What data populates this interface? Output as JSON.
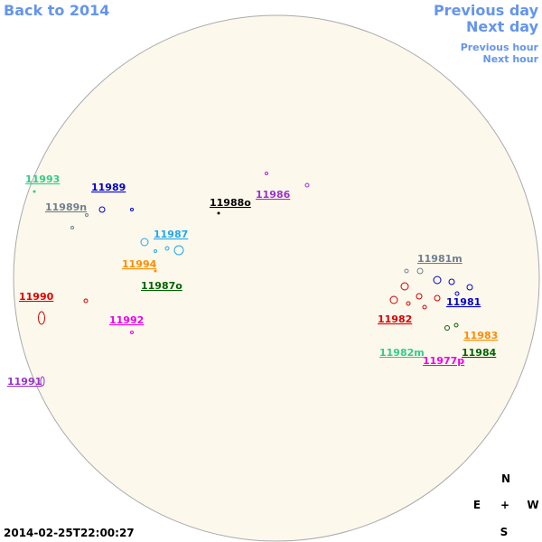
{
  "nav": {
    "back": "Back to 2014",
    "previous_day": "Previous day",
    "next_day": "Next day",
    "previous_hour": "Previous hour",
    "next_hour": "Next hour"
  },
  "regions": [
    "11993",
    "11989",
    "11989n",
    "11988o",
    "11986",
    "11987",
    "11994",
    "11987o",
    "11990",
    "11992",
    "11991",
    "11981m",
    "11981",
    "11982",
    "11983",
    "11982m",
    "11984",
    "11977p"
  ],
  "compass": {
    "north": "N",
    "east": "E",
    "center": "+",
    "west": "W",
    "south": "S"
  },
  "timestamp": "2014-02-25T22:00:27"
}
